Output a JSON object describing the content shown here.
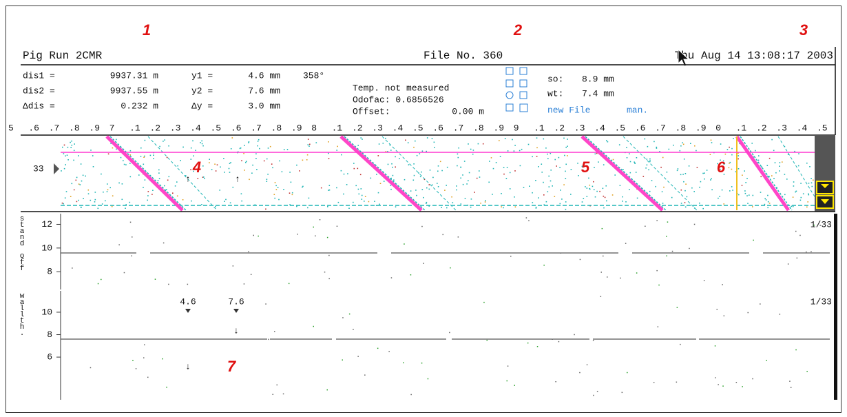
{
  "annotations": [
    "1",
    "2",
    "3",
    "4",
    "5",
    "6",
    "7"
  ],
  "header": {
    "title": "Pig Run 2CMR",
    "file": "File No. 360",
    "datetime": "Thu Aug 14 13:08:17 2003"
  },
  "measurements": [
    [
      "dis1 =",
      "9937.31 m",
      "y1 =",
      "4.6 mm",
      "358°"
    ],
    [
      "dis2 =",
      "9937.55 m",
      "y2 =",
      "7.6 mm"
    ],
    [
      "Δdis =",
      "0.232 m",
      "Δy =",
      "3.0 mm"
    ]
  ],
  "status": {
    "temp": "Temp. not measured",
    "odofac": "Odofac: 0.6856526",
    "offset_label": "Offset:",
    "offset_value": "0.00 m"
  },
  "summary": {
    "rows": [
      [
        "so:",
        "8.9 mm"
      ],
      [
        "wt:",
        "7.4 mm"
      ]
    ],
    "new_file": "new File",
    "mode": "man."
  },
  "scale": {
    "labels": [
      "5",
      ".6",
      ".7",
      ".8",
      ".9",
      "7",
      ".1",
      ".2",
      ".3",
      ".4",
      ".5",
      ".6",
      ".7",
      ".8",
      ".9",
      "8",
      ".1",
      ".2",
      ".3",
      ".4",
      ".5",
      ".6",
      ".7",
      ".8",
      ".9",
      "9",
      ".1",
      ".2",
      ".3",
      ".4",
      ".5",
      ".6",
      ".7",
      ".8",
      ".9",
      "0",
      ".1",
      ".2",
      ".3",
      ".4",
      ".5"
    ]
  },
  "strip": {
    "channel": "33"
  },
  "panels": [
    {
      "label": "stand off",
      "yticks": [
        12,
        10,
        8
      ],
      "ylim": [
        6.5,
        12.9
      ],
      "channel": "1/33"
    },
    {
      "label": "wallth.",
      "yticks": [
        10,
        8,
        6
      ],
      "ylim": [
        2.2,
        11.9
      ],
      "channel": "1/33",
      "markers": [
        "4.6",
        "7.6"
      ]
    }
  ]
}
